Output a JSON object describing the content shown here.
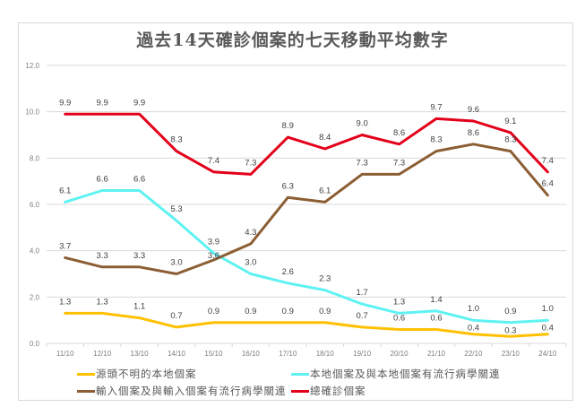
{
  "chart_data": {
    "type": "line",
    "title": "過去14天確診個案的七天移動平均數字",
    "xlabel": "",
    "ylabel": "",
    "ylim": [
      0,
      12
    ],
    "yticks": [
      "0.0",
      "2.0",
      "4.0",
      "6.0",
      "8.0",
      "10.0",
      "12.0"
    ],
    "grid": true,
    "legend_position": "bottom",
    "categories": [
      "11/10",
      "12/10",
      "13/10",
      "14/10",
      "15/10",
      "16/10",
      "17/10",
      "18/10",
      "19/10",
      "20/10",
      "21/10",
      "22/10",
      "23/10",
      "24/10"
    ],
    "series": [
      {
        "name": "源頭不明的本地個案",
        "color": "#ffc000",
        "values": [
          1.3,
          1.3,
          1.1,
          0.7,
          0.9,
          0.9,
          0.9,
          0.9,
          0.7,
          0.6,
          0.6,
          0.4,
          0.3,
          0.4
        ],
        "labels": [
          "1.3",
          "1.3",
          "1.1",
          "0.7",
          "0.9",
          "0.9",
          "0.9",
          "0.9",
          "0.7",
          "0.6",
          "0.6",
          "0.4",
          "0.3",
          "0.4"
        ]
      },
      {
        "name": "本地個案及與本地個案有流行病學關連",
        "color": "#5ff2f2",
        "values": [
          6.1,
          6.6,
          6.6,
          5.3,
          3.9,
          3.0,
          2.6,
          2.3,
          1.7,
          1.3,
          1.4,
          1.0,
          0.9,
          1.0
        ],
        "labels": [
          "6.1",
          "6.6",
          "6.6",
          "5.3",
          "3.9",
          "3.0",
          "2.6",
          "2.3",
          "1.7",
          "1.3",
          "1.4",
          "1.0",
          "0.9",
          "1.0"
        ]
      },
      {
        "name": "輸入個案及與輸入個案有流行病學關連",
        "color": "#8b5e34",
        "values": [
          3.7,
          3.3,
          3.3,
          3.0,
          3.6,
          4.3,
          6.3,
          6.1,
          7.3,
          7.3,
          8.3,
          8.6,
          8.3,
          6.4
        ],
        "labels": [
          "3.7",
          "3.3",
          "3.3",
          "3.0",
          "3.6",
          "4.3",
          "6.3",
          "6.1",
          "7.3",
          "7.3",
          "8.3",
          "8.6",
          "8.3",
          "6.4"
        ]
      },
      {
        "name": "總確診個案",
        "color": "#e3001b",
        "values": [
          9.9,
          9.9,
          9.9,
          8.3,
          7.4,
          7.3,
          8.9,
          8.4,
          9.0,
          8.6,
          9.7,
          9.6,
          9.1,
          7.4
        ],
        "labels": [
          "9.9",
          "9.9",
          "9.9",
          "8.3",
          "7.4",
          "7.3",
          "8.9",
          "8.4",
          "9.0",
          "8.6",
          "9.7",
          "9.6",
          "9.1",
          "7.4"
        ]
      }
    ]
  }
}
